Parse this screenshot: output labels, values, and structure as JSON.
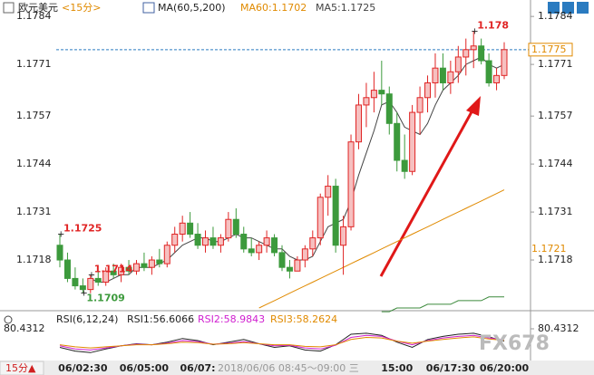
{
  "chart_data": [
    {
      "type": "candlestick",
      "title": "欧元美元",
      "period": "<15分>",
      "indicator": "MA(60,5,200)",
      "categories": [
        null,
        null,
        null,
        "06/02:30",
        null,
        null,
        null,
        null,
        null,
        null,
        null,
        "06/05:00",
        null,
        null,
        null,
        null,
        null,
        null,
        "06/07:",
        null,
        null,
        null,
        null,
        null,
        null,
        null,
        null,
        null,
        null,
        null,
        null,
        null,
        null,
        null,
        null,
        null,
        null,
        null,
        null,
        null,
        null,
        null,
        null,
        null,
        "15:00",
        null,
        null,
        null,
        null,
        null,
        null,
        "06/17:30",
        null,
        null,
        null,
        null,
        null,
        null,
        "06/20:00"
      ],
      "open": [
        1.1722,
        1.1718,
        1.1713,
        1.1711,
        1.171,
        1.1713,
        1.1712,
        1.1715,
        1.1714,
        1.1716,
        1.1715,
        1.1717,
        1.1716,
        1.1718,
        1.1717,
        1.1722,
        1.1725,
        1.1728,
        1.1725,
        1.1722,
        1.1724,
        1.1722,
        1.1724,
        1.1729,
        1.1725,
        1.1721,
        1.172,
        1.1722,
        1.1724,
        1.172,
        1.1716,
        1.1715,
        1.1718,
        1.1721,
        1.1724,
        1.1735,
        1.1738,
        1.1722,
        1.1727,
        1.175,
        1.176,
        1.1762,
        1.1764,
        1.1763,
        1.1755,
        1.1745,
        1.1742,
        1.1758,
        1.1762,
        1.1766,
        1.177,
        1.1766,
        1.1769,
        1.1773,
        1.1775,
        1.1776,
        1.1772,
        1.1766,
        1.1768
      ],
      "high": [
        1.1725,
        1.172,
        1.1716,
        1.1713,
        1.1714,
        1.1715,
        1.1716,
        1.1717,
        1.1717,
        1.1718,
        1.1718,
        1.172,
        1.1719,
        1.1721,
        1.1723,
        1.1727,
        1.173,
        1.1731,
        1.1728,
        1.1726,
        1.1727,
        1.1725,
        1.1731,
        1.1732,
        1.1727,
        1.1724,
        1.1723,
        1.1726,
        1.1725,
        1.1722,
        1.1718,
        1.1719,
        1.1722,
        1.1726,
        1.1736,
        1.1741,
        1.174,
        1.173,
        1.1752,
        1.1763,
        1.1766,
        1.1769,
        1.1772,
        1.1765,
        1.1758,
        1.1752,
        1.176,
        1.1765,
        1.1768,
        1.1774,
        1.1774,
        1.1772,
        1.1776,
        1.1778,
        1.178,
        1.1778,
        1.1774,
        1.177,
        1.1777
      ],
      "low": [
        1.1716,
        1.1712,
        1.171,
        1.1709,
        1.1709,
        1.1711,
        1.1711,
        1.1713,
        1.1712,
        1.1714,
        1.1714,
        1.1715,
        1.1714,
        1.1716,
        1.1716,
        1.172,
        1.1723,
        1.1724,
        1.1721,
        1.172,
        1.1721,
        1.172,
        1.1723,
        1.1724,
        1.172,
        1.1719,
        1.1718,
        1.172,
        1.1719,
        1.1715,
        1.1713,
        1.1715,
        1.1716,
        1.1719,
        1.1722,
        1.173,
        1.172,
        1.1714,
        1.1726,
        1.1748,
        1.1754,
        1.1758,
        1.176,
        1.1752,
        1.1742,
        1.174,
        1.1741,
        1.1752,
        1.1758,
        1.1762,
        1.1764,
        1.1763,
        1.1766,
        1.1768,
        1.177,
        1.1771,
        1.1765,
        1.1764,
        1.1767
      ],
      "close": [
        1.1718,
        1.1713,
        1.1711,
        1.171,
        1.1713,
        1.1712,
        1.1715,
        1.1714,
        1.1716,
        1.1715,
        1.1717,
        1.1716,
        1.1718,
        1.1717,
        1.1722,
        1.1725,
        1.1728,
        1.1725,
        1.1722,
        1.1724,
        1.1722,
        1.1724,
        1.1729,
        1.1725,
        1.1721,
        1.172,
        1.1722,
        1.1724,
        1.172,
        1.1716,
        1.1715,
        1.1718,
        1.1721,
        1.1724,
        1.1735,
        1.1738,
        1.1722,
        1.1727,
        1.175,
        1.176,
        1.1762,
        1.1764,
        1.1763,
        1.1755,
        1.1745,
        1.1742,
        1.1758,
        1.1762,
        1.1766,
        1.177,
        1.1766,
        1.1769,
        1.1773,
        1.1775,
        1.1776,
        1.1772,
        1.1766,
        1.1768,
        1.1775
      ],
      "up_color": "#e02424",
      "down_color": "#3c9a3c",
      "series": [
        {
          "name": "MA60:1.1702",
          "color": "#e08a00",
          "values": [
            null,
            null,
            null,
            null,
            null,
            null,
            null,
            null,
            null,
            null,
            null,
            null,
            null,
            null,
            null,
            null,
            null,
            null,
            null,
            null,
            null,
            null,
            null,
            null,
            null,
            null,
            1.1705,
            1.1706,
            1.1707,
            1.1708,
            1.1709,
            1.171,
            1.1711,
            1.1712,
            1.1713,
            1.1714,
            1.1715,
            1.1716,
            1.1717,
            1.1718,
            1.1719,
            1.172,
            1.1721,
            1.1722,
            1.1723,
            1.1724,
            1.1725,
            1.1726,
            1.1727,
            1.1728,
            1.1729,
            1.173,
            1.1731,
            1.1732,
            1.1733,
            1.1734,
            1.1735,
            1.1736,
            1.1737
          ]
        },
        {
          "name": "MA5:1.1725",
          "color": "#444444",
          "values": [
            null,
            null,
            null,
            null,
            1.1713,
            1.1712,
            1.1712,
            1.1713,
            1.1714,
            1.1714,
            1.1716,
            1.1716,
            1.1716,
            1.1717,
            1.1718,
            1.172,
            1.1722,
            1.1723,
            1.1724,
            1.1724,
            1.1723,
            1.1723,
            1.1724,
            1.1725,
            1.1724,
            1.1724,
            1.1723,
            1.1722,
            1.1721,
            1.1721,
            1.1719,
            1.1718,
            1.1718,
            1.1719,
            1.1723,
            1.1727,
            1.1728,
            1.1729,
            1.1734,
            1.1741,
            1.1747,
            1.1753,
            1.176,
            1.1761,
            1.1758,
            1.1754,
            1.1753,
            1.1752,
            1.1755,
            1.176,
            1.1764,
            1.1766,
            1.1768,
            1.1771,
            1.1772,
            1.1773,
            1.1771,
            1.177,
            1.1771
          ]
        },
        {
          "color": "#3c8a3c",
          "values": [
            null,
            null,
            null,
            null,
            null,
            null,
            null,
            null,
            null,
            null,
            null,
            null,
            null,
            null,
            null,
            null,
            null,
            null,
            null,
            null,
            null,
            null,
            null,
            null,
            null,
            null,
            null,
            null,
            null,
            null,
            null,
            null,
            null,
            null,
            null,
            null,
            null,
            null,
            null,
            null,
            null,
            null,
            1.1704,
            1.1704,
            1.1705,
            1.1705,
            1.1705,
            1.1705,
            1.1706,
            1.1706,
            1.1706,
            1.1706,
            1.1707,
            1.1707,
            1.1707,
            1.1707,
            1.1708,
            1.1708,
            1.1708
          ]
        }
      ],
      "annotations": [
        1.1725,
        1.1709,
        1.1714,
        1.178
      ],
      "last_price": 1.1775,
      "side_price": 1.1721,
      "ylim": [
        1.1705,
        1.1786
      ],
      "yticks": [
        1.1784,
        1.1771,
        1.1757,
        1.1744,
        1.1731,
        1.1718
      ],
      "cursor_label": "2018/06/06 08:45～09:00 三",
      "period_button": "15分▲",
      "watermark": "FX678"
    },
    {
      "type": "line",
      "title": "RSI(6,12,24)",
      "series": [
        {
          "name": "RSI1:56.6066",
          "color": "#222222",
          "values": [
            45,
            38,
            35,
            42,
            48,
            52,
            50,
            55,
            62,
            58,
            50,
            55,
            60,
            52,
            45,
            48,
            40,
            38,
            50,
            70,
            72,
            68,
            55,
            45,
            60,
            66,
            70,
            72,
            65,
            56.6066
          ]
        },
        {
          "name": "RSI2:58.9843",
          "color": "#d020d0",
          "values": [
            48,
            42,
            40,
            44,
            48,
            51,
            50,
            53,
            58,
            56,
            51,
            53,
            56,
            52,
            48,
            49,
            44,
            42,
            49,
            64,
            68,
            66,
            57,
            50,
            58,
            63,
            66,
            68,
            63,
            58.9843
          ]
        },
        {
          "name": "RSI3:58.2624",
          "color": "#e08a00",
          "values": [
            50,
            46,
            44,
            46,
            48,
            50,
            50,
            52,
            55,
            54,
            51,
            52,
            54,
            52,
            50,
            50,
            47,
            46,
            50,
            60,
            64,
            63,
            57,
            53,
            57,
            60,
            63,
            65,
            61,
            58.2624
          ]
        }
      ],
      "ylim": [
        20,
        80.4312
      ],
      "yticks": [
        80.4312
      ]
    }
  ]
}
